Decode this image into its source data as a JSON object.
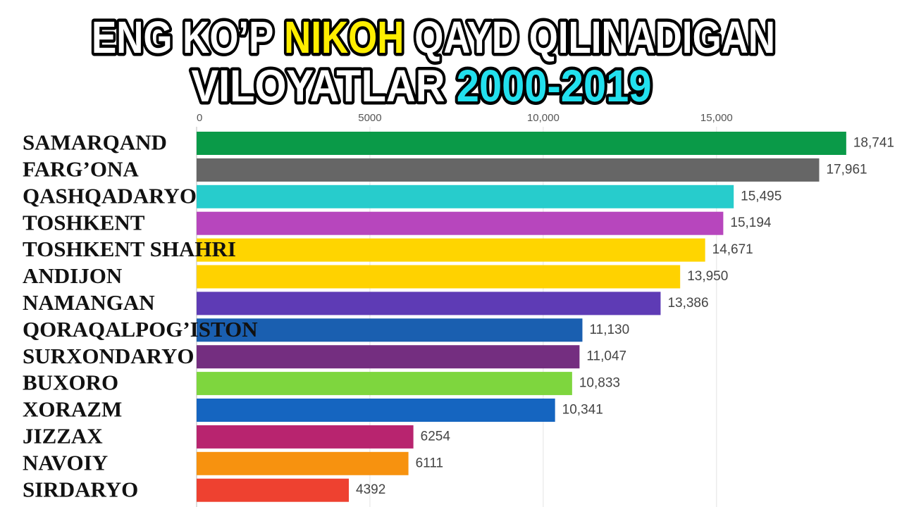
{
  "chart_data": {
    "type": "bar",
    "orientation": "horizontal",
    "title": [
      "ENG KO’P",
      "NIKOH",
      "QAYD QILINADIGAN",
      "VILOYATLAR",
      "2000-2019"
    ],
    "title_colors": [
      "#ffffff",
      "#ffee00",
      "#ffffff",
      "#ffffff",
      "#22e0ee"
    ],
    "categories": [
      "SAMARQAND",
      "FARG’ONA",
      "QASHQADARYO",
      "TOSHKENT",
      "TOSHKENT SHAHRI",
      "ANDIJON",
      "NAMANGAN",
      "QORAQALPOG’ISTON",
      "SURXONDARYO",
      "BUXORO",
      "XORAZM",
      "JIZZAX",
      "NAVOIY",
      "SIRDARYO"
    ],
    "values": [
      18741,
      17961,
      15495,
      15194,
      14671,
      13950,
      13386,
      11130,
      11047,
      10833,
      10341,
      6254,
      6111,
      4392
    ],
    "value_labels": [
      "18,741",
      "17,961",
      "15,495",
      "15,194",
      "14,671",
      "13,950",
      "13,386",
      "11,130",
      "11,047",
      "10,833",
      "10,341",
      "6254",
      "6111",
      "4392"
    ],
    "colors": [
      "#0a9a48",
      "#666666",
      "#27cccc",
      "#b746bd",
      "#ffd500",
      "#ffd200",
      "#5e3bb5",
      "#1a5fb0",
      "#742e80",
      "#7ed63e",
      "#1565c0",
      "#b8246f",
      "#f7920f",
      "#ee4130"
    ],
    "xlim": [
      0,
      20350
    ],
    "xticks": [
      0,
      5000,
      {
        "value": 10000,
        "label": "10,000"
      },
      {
        "value": 15000,
        "label": "15,000"
      }
    ],
    "grid": true
  }
}
